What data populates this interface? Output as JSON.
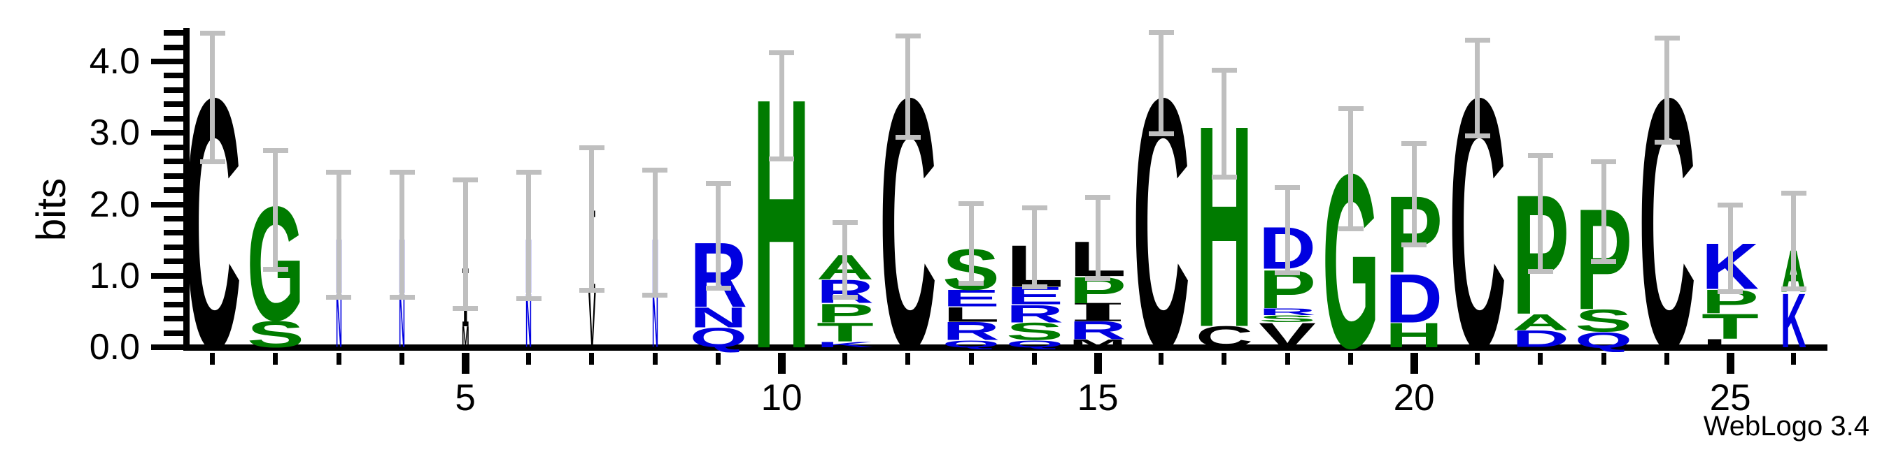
{
  "credit": "WebLogo 3.4",
  "chart_data": {
    "type": "sequence_logo",
    "title": "",
    "ylabel": "bits",
    "ylim": [
      0,
      4.4
    ],
    "ytick_labels": [
      "0.0",
      "1.0",
      "2.0",
      "3.0",
      "4.0"
    ],
    "ytick_major": [
      0,
      1,
      2,
      3,
      4
    ],
    "ytick_minor_step": 0.2,
    "n_positions": 26,
    "xtick_labels": [
      "5",
      "10",
      "15",
      "20",
      "25"
    ],
    "xtick_label_positions": [
      5,
      10,
      15,
      20,
      25
    ],
    "color_scheme": "hydrophobicity (blue RKDENQ hydrophilic, green SGHTAP neutral, black CLIMVFW hydrophobic)",
    "colors": {
      "black": "#000000",
      "green": "#007b00",
      "blue": "#0000e0",
      "error_bar": "#bfbfbf",
      "axis": "#000000"
    },
    "positions": [
      {
        "pos": 1,
        "width": 1,
        "err": [
          2.6,
          4.4
        ],
        "stack": [
          [
            "C",
            "black",
            3.6
          ]
        ]
      },
      {
        "pos": 2,
        "width": 1,
        "err": [
          1.1,
          2.76
        ],
        "stack": [
          [
            "S",
            "green",
            0.38
          ],
          [
            "G",
            "green",
            1.64
          ]
        ]
      },
      {
        "pos": 3,
        "width": 0.11,
        "err": [
          0.7,
          2.45
        ],
        "stack": [
          [
            "N",
            "blue",
            0.77
          ],
          [
            "N",
            "blue",
            0.78
          ]
        ]
      },
      {
        "pos": 4,
        "width": 0.11,
        "err": [
          0.7,
          2.45
        ],
        "stack": [
          [
            "N",
            "blue",
            0.77
          ],
          [
            "N",
            "blue",
            0.78
          ]
        ]
      },
      {
        "pos": 5,
        "width": 0.13,
        "err": [
          0.55,
          2.35
        ],
        "stack": [
          [
            "M",
            "black",
            0.3
          ],
          [
            "I",
            "black",
            0.8
          ]
        ]
      },
      {
        "pos": 6,
        "width": 0.11,
        "err": [
          0.68,
          2.45
        ],
        "stack": [
          [
            "N",
            "blue",
            0.77
          ],
          [
            "N",
            "blue",
            0.78
          ]
        ]
      },
      {
        "pos": 7,
        "width": 0.13,
        "err": [
          0.8,
          2.8
        ],
        "stack": [
          [
            "V",
            "black",
            0.8
          ],
          [
            "I",
            "black",
            1.1
          ]
        ]
      },
      {
        "pos": 8,
        "width": 0.11,
        "err": [
          0.73,
          2.48
        ],
        "stack": [
          [
            "N",
            "blue",
            0.77
          ],
          [
            "N",
            "blue",
            0.78
          ]
        ]
      },
      {
        "pos": 9,
        "width": 1,
        "err": [
          0.83,
          2.3
        ],
        "stack": [
          [
            "Q",
            "blue",
            0.28
          ],
          [
            "N",
            "blue",
            0.29
          ],
          [
            "R",
            "blue",
            0.93
          ]
        ]
      },
      {
        "pos": 10,
        "width": 1,
        "err": [
          2.64,
          4.13
        ],
        "stack": [
          [
            "H",
            "green",
            3.6
          ]
        ]
      },
      {
        "pos": 11,
        "width": 1,
        "err": [
          0.7,
          1.75
        ],
        "stack": [
          [
            "K",
            "blue",
            0.08
          ],
          [
            "T",
            "green",
            0.27
          ],
          [
            "P",
            "green",
            0.27
          ],
          [
            "R",
            "blue",
            0.33
          ],
          [
            "A",
            "green",
            0.35
          ]
        ]
      },
      {
        "pos": 12,
        "width": 1,
        "err": [
          2.94,
          4.36
        ],
        "stack": [
          [
            "C",
            "black",
            3.6
          ]
        ]
      },
      {
        "pos": 13,
        "width": 1,
        "err": [
          0.9,
          2.01
        ],
        "stack": [
          [
            "Q",
            "blue",
            0.1
          ],
          [
            "R",
            "blue",
            0.26
          ],
          [
            "L",
            "black",
            0.21
          ],
          [
            "E",
            "blue",
            0.24
          ],
          [
            "S",
            "green",
            0.59
          ]
        ]
      },
      {
        "pos": 14,
        "width": 1,
        "err": [
          0.85,
          1.96
        ],
        "stack": [
          [
            "Q",
            "blue",
            0.1
          ],
          [
            "S",
            "green",
            0.25
          ],
          [
            "R",
            "blue",
            0.25
          ],
          [
            "E",
            "blue",
            0.25
          ],
          [
            "L",
            "black",
            0.6
          ]
        ]
      },
      {
        "pos": 15,
        "width": 1,
        "err": [
          0.97,
          2.1
        ],
        "stack": [
          [
            "M",
            "black",
            0.11
          ],
          [
            "R",
            "blue",
            0.26
          ],
          [
            "I",
            "black",
            0.25
          ],
          [
            "P",
            "green",
            0.38
          ],
          [
            "L",
            "black",
            0.5
          ]
        ]
      },
      {
        "pos": 16,
        "width": 1,
        "err": [
          2.99,
          4.41
        ],
        "stack": [
          [
            "C",
            "black",
            3.6
          ]
        ]
      },
      {
        "pos": 17,
        "width": 1,
        "err": [
          2.39,
          3.88
        ],
        "stack": [
          [
            "C",
            "black",
            0.3
          ],
          [
            "H",
            "green",
            2.9
          ]
        ]
      },
      {
        "pos": 18,
        "width": 1,
        "err": [
          1.05,
          2.24
        ],
        "stack": [
          [
            "V",
            "black",
            0.35
          ],
          [
            "S",
            "green",
            0.1
          ],
          [
            "R",
            "blue",
            0.1
          ],
          [
            "P",
            "green",
            0.55
          ],
          [
            "D",
            "blue",
            0.6
          ]
        ]
      },
      {
        "pos": 19,
        "width": 1,
        "err": [
          1.66,
          3.34
        ],
        "stack": [
          [
            "G",
            "green",
            2.5
          ]
        ]
      },
      {
        "pos": 20,
        "width": 1,
        "err": [
          1.44,
          2.86
        ],
        "stack": [
          [
            "H",
            "green",
            0.35
          ],
          [
            "D",
            "blue",
            0.7
          ],
          [
            "P",
            "green",
            1.1
          ]
        ]
      },
      {
        "pos": 21,
        "width": 1,
        "err": [
          2.96,
          4.3
        ],
        "stack": [
          [
            "C",
            "black",
            3.6
          ]
        ]
      },
      {
        "pos": 22,
        "width": 1,
        "err": [
          1.07,
          2.69
        ],
        "stack": [
          [
            "D",
            "blue",
            0.24
          ],
          [
            "A",
            "green",
            0.23
          ],
          [
            "P",
            "green",
            1.72
          ]
        ]
      },
      {
        "pos": 23,
        "width": 1,
        "err": [
          1.2,
          2.6
        ],
        "stack": [
          [
            "Q",
            "blue",
            0.22
          ],
          [
            "S",
            "green",
            0.32
          ],
          [
            "P",
            "green",
            1.45
          ]
        ]
      },
      {
        "pos": 24,
        "width": 1,
        "err": [
          2.88,
          4.33
        ],
        "stack": [
          [
            "C",
            "black",
            3.6
          ]
        ]
      },
      {
        "pos": 25,
        "width": 1,
        "err": [
          0.78,
          2.0
        ],
        "stack": [
          [
            "L",
            "black",
            0.12
          ],
          [
            "T",
            "green",
            0.36
          ],
          [
            "P",
            "green",
            0.34
          ],
          [
            "K",
            "blue",
            0.66
          ]
        ]
      },
      {
        "pos": 26,
        "width": 0.45,
        "err": [
          0.82,
          2.16
        ],
        "stack": [
          [
            "K",
            "blue",
            0.78
          ],
          [
            "A",
            "green",
            0.6
          ]
        ]
      }
    ]
  }
}
